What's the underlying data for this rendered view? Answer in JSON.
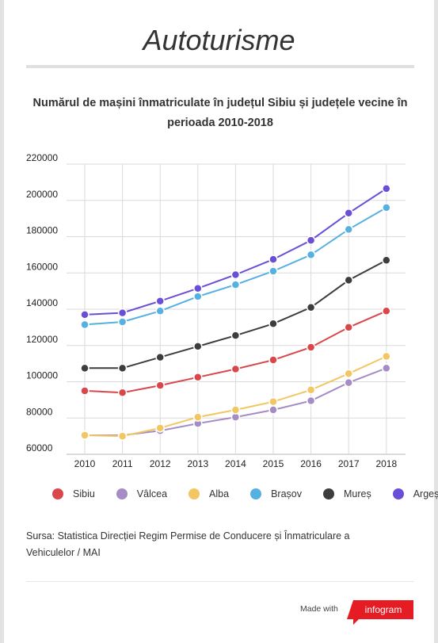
{
  "header": {
    "title": "Autoturisme",
    "chart_title_line1": "Numărul de mașini înmatriculate în județul Sibiu și județele vecine în",
    "chart_title_line2": "perioada 2010-2018"
  },
  "chart_data": {
    "type": "line",
    "title": "Numărul de mașini înmatriculate în județul Sibiu și județele vecine în perioada 2010-2018",
    "x": [
      "2010",
      "2011",
      "2012",
      "2013",
      "2014",
      "2015",
      "2016",
      "2017",
      "2018"
    ],
    "ylim": [
      60000,
      220000
    ],
    "yticks": [
      "220000",
      "200000",
      "180000",
      "160000",
      "140000",
      "120000",
      "100000",
      "80000",
      "60000"
    ],
    "grid": true,
    "legend_position": "bottom",
    "series": [
      {
        "name": "Sibiu",
        "color": "#d9474b",
        "values": [
          95000,
          94000,
          98000,
          102500,
          107000,
          112000,
          119000,
          130000,
          139000
        ]
      },
      {
        "name": "Vâlcea",
        "color": "#a58cc4",
        "values": [
          70500,
          70500,
          73000,
          77000,
          80500,
          84500,
          89500,
          99500,
          107500
        ]
      },
      {
        "name": "Alba",
        "color": "#f2c661",
        "values": [
          70500,
          70000,
          74500,
          80500,
          84500,
          89000,
          95500,
          104500,
          114000
        ]
      },
      {
        "name": "Brașov",
        "color": "#56b0e0",
        "values": [
          131500,
          133000,
          139000,
          147000,
          153500,
          161000,
          170000,
          184000,
          196000
        ]
      },
      {
        "name": "Mureș",
        "color": "#3d3d3d",
        "values": [
          107500,
          107500,
          113500,
          119500,
          125500,
          132000,
          141000,
          156000,
          167000
        ]
      },
      {
        "name": "Argeș",
        "color": "#6a4fd6",
        "values": [
          137000,
          138000,
          144500,
          151500,
          159000,
          167500,
          178000,
          193000,
          206500
        ]
      }
    ]
  },
  "source": {
    "line1": "Sursa: Statistica Direcției Regim Permise de Conducere și Înmatriculare a",
    "line2": "Vehiculelor / MAI"
  },
  "footer": {
    "made_with": "Made with",
    "brand": "infogram"
  }
}
